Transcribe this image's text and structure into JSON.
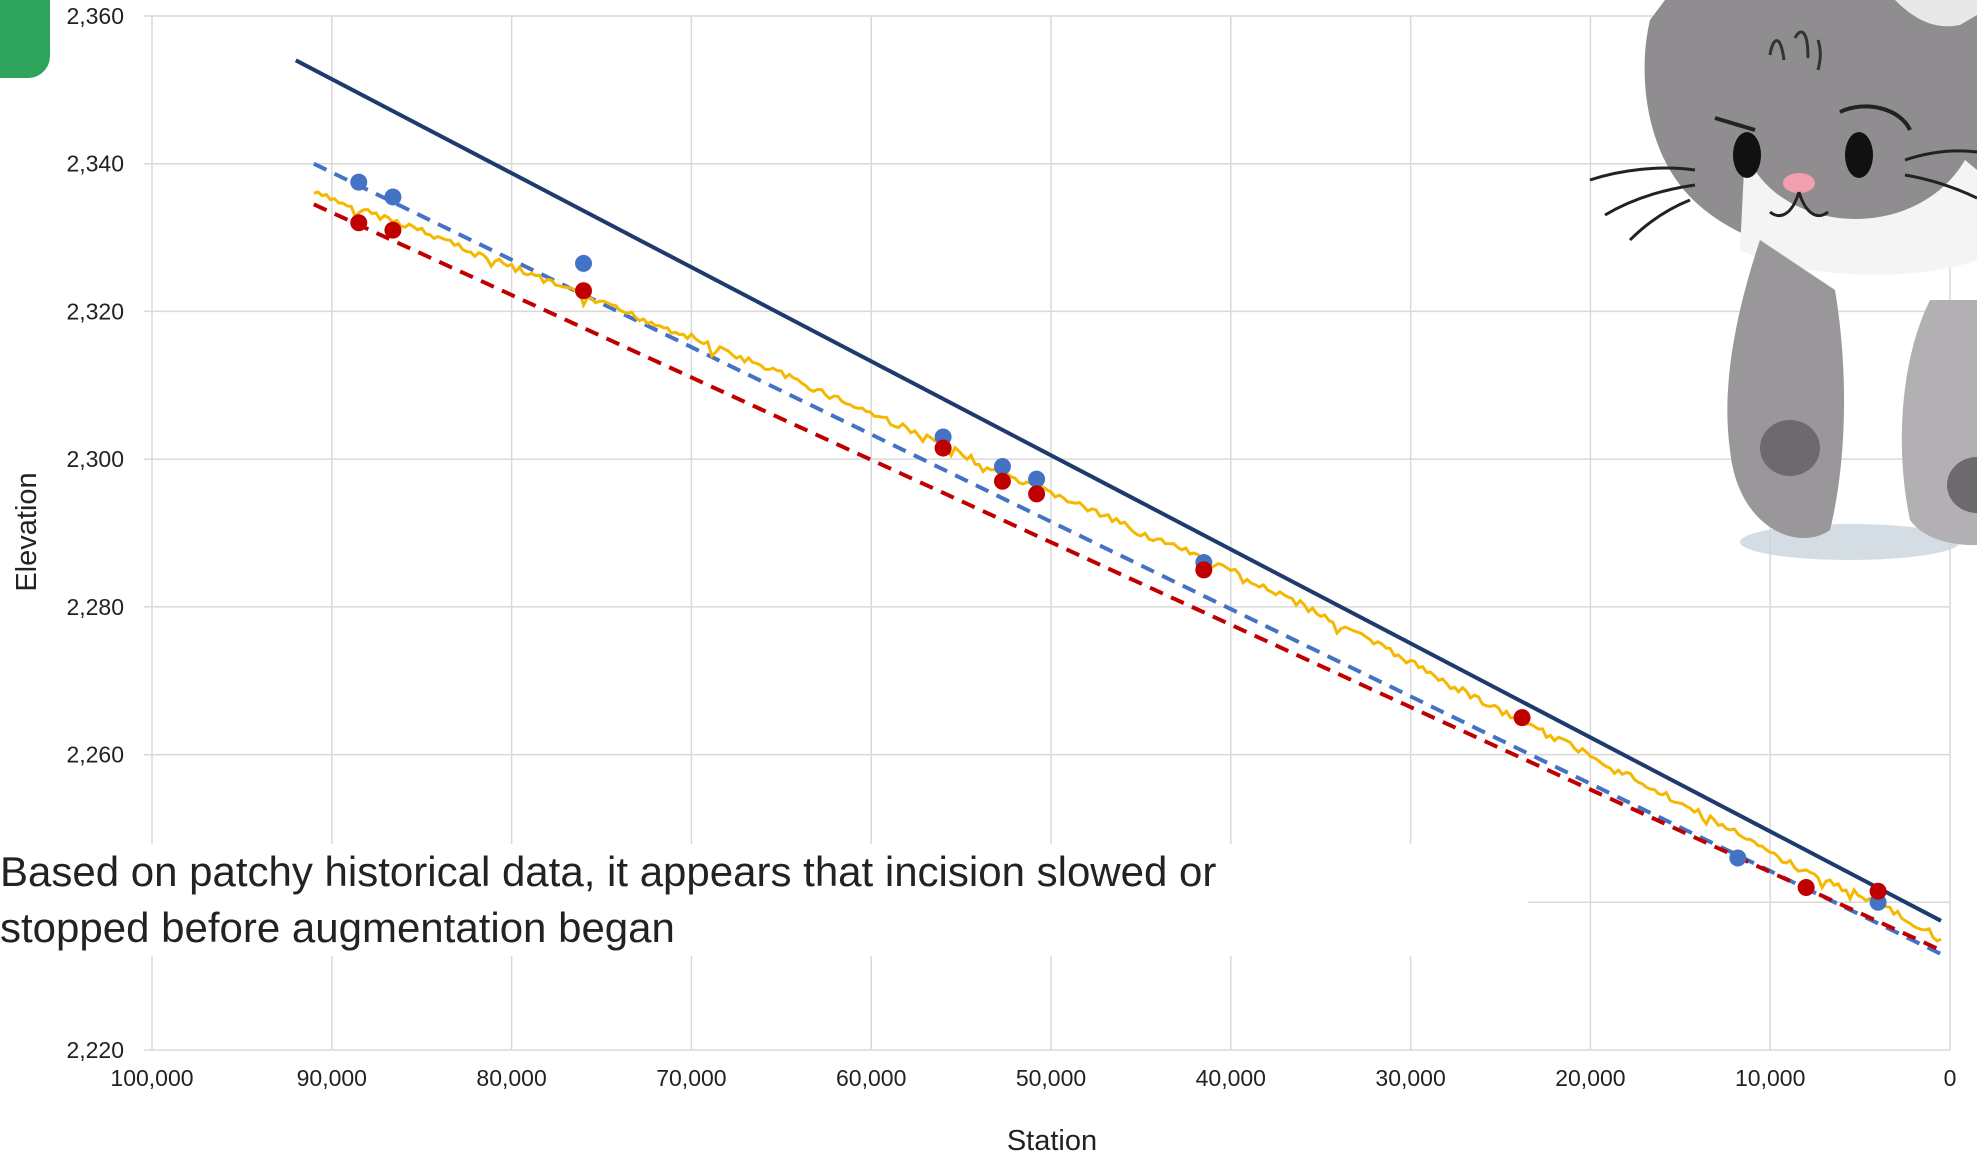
{
  "chart_data": {
    "type": "line",
    "title": "",
    "xlabel": "Station",
    "ylabel": "Elevation",
    "x_reversed": true,
    "xlim": [
      100000,
      0
    ],
    "ylim": [
      2220,
      2360
    ],
    "x_ticks": [
      "100,000",
      "90,000",
      "80,000",
      "70,000",
      "60,000",
      "50,000",
      "40,000",
      "30,000",
      "20,000",
      "10,000",
      "0"
    ],
    "y_ticks": [
      "2,360",
      "2,340",
      "2,320",
      "2,300",
      "2,280",
      "2,260",
      "2,220"
    ],
    "grid": true,
    "legend": "none",
    "series": [
      {
        "type": "line",
        "style": "solid",
        "color": "#1f3a6e",
        "x": [
          92000,
          500
        ],
        "y": [
          2354,
          2237.5
        ]
      },
      {
        "type": "line",
        "style": "dashed",
        "color": "#4472c4",
        "x": [
          91000,
          500
        ],
        "y": [
          2340,
          2233
        ]
      },
      {
        "type": "line",
        "style": "dashed",
        "color": "#c00000",
        "x": [
          91000,
          500
        ],
        "y": [
          2334.5,
          2233.5
        ]
      },
      {
        "type": "line",
        "style": "jagged",
        "color": "#f5b800",
        "x": [
          91000,
          88000,
          85000,
          80000,
          76000,
          70000,
          65000,
          56000,
          52000,
          50000,
          45000,
          40000,
          35000,
          30000,
          24000,
          20000,
          12000,
          8000,
          4000,
          500
        ],
        "y": [
          2336,
          2333.5,
          2331,
          2326,
          2322,
          2316.5,
          2311.5,
          2302,
          2297,
          2295.5,
          2290,
          2285,
          2279,
          2272.5,
          2264.5,
          2260,
          2249.5,
          2244,
          2240,
          2235
        ]
      },
      {
        "type": "scatter",
        "color": "#4472c4",
        "x": [
          88500,
          86600,
          76000,
          56000,
          52700,
          50800,
          41500,
          11800,
          4000
        ],
        "y": [
          2337.5,
          2335.5,
          2326.5,
          2303,
          2299,
          2297.3,
          2286,
          2246,
          2240
        ]
      },
      {
        "type": "scatter",
        "color": "#c00000",
        "x": [
          88500,
          86600,
          76000,
          56000,
          52700,
          50800,
          41500,
          23800,
          8000,
          4000
        ],
        "y": [
          2332,
          2331,
          2322.8,
          2301.5,
          2297,
          2295.3,
          2285,
          2265,
          2242,
          2241.5
        ]
      }
    ]
  },
  "caption": {
    "line1": "Based on patchy historical data, it appears that incision slowed or",
    "line2": "stopped before augmentation began"
  },
  "decorations": {
    "corner_tab_color": "#2ea35c",
    "cat_illustration": "cat-sticker-icon"
  }
}
